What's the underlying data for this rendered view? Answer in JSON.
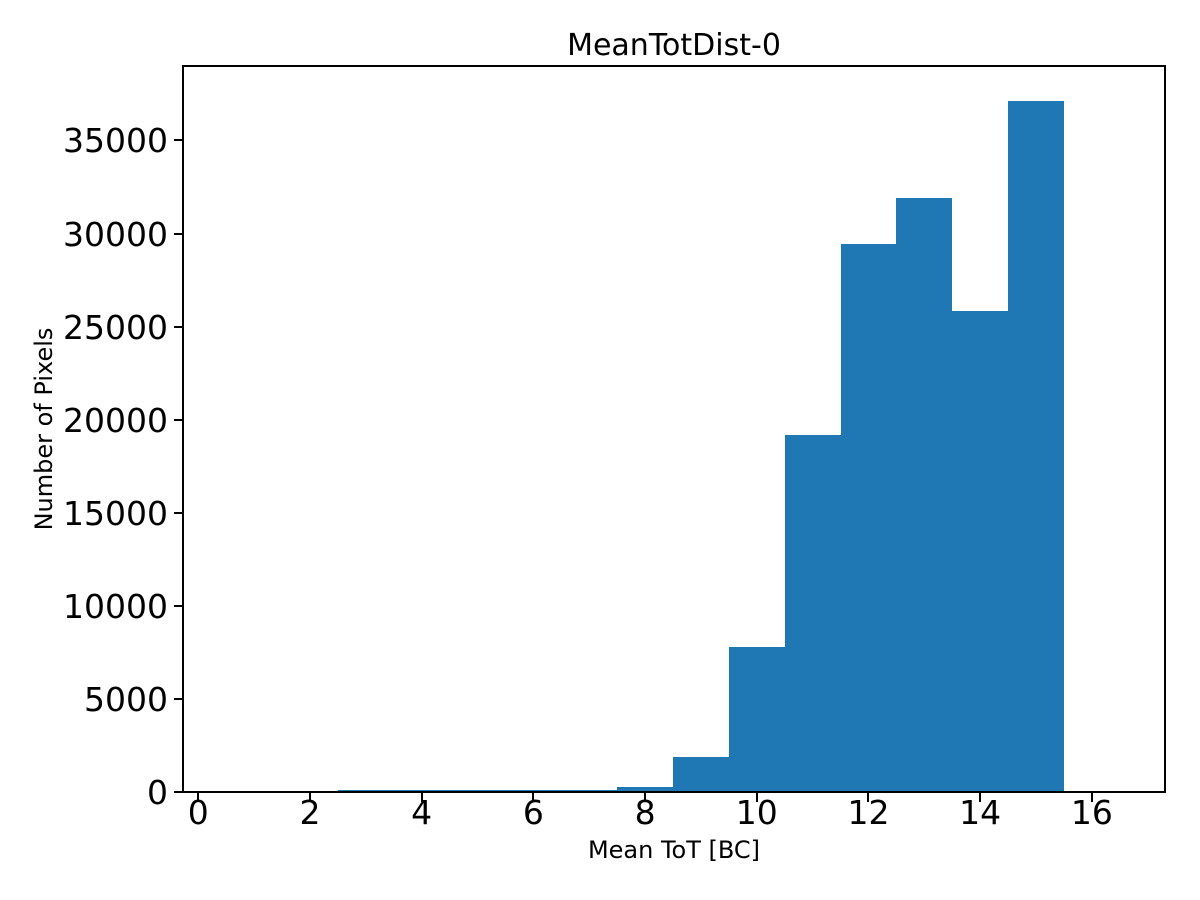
{
  "figure": {
    "background": "#ffffff",
    "text_color": "#000000"
  },
  "chart_data": {
    "type": "bar",
    "title": "MeanTotDist-0",
    "xlabel": "Mean ToT [BC]",
    "ylabel": "Number of Pixels",
    "bar_color": "#1f77b4",
    "axis_color": "#000000",
    "grid": false,
    "legend": null,
    "bin_edges": [
      2.5,
      3.5,
      4.5,
      5.5,
      6.5,
      7.5,
      8.5,
      9.5,
      10.5,
      11.5,
      12.5,
      13.5,
      14.5,
      15.5
    ],
    "values": [
      60,
      65,
      70,
      75,
      90,
      260,
      1890,
      7800,
      19200,
      29450,
      31900,
      25850,
      37100
    ],
    "xticks": [
      0,
      2,
      4,
      6,
      8,
      10,
      12,
      14,
      16
    ],
    "yticks": [
      0,
      5000,
      10000,
      15000,
      20000,
      25000,
      30000,
      35000
    ],
    "xlim": [
      -0.274,
      17.31
    ],
    "ylim": [
      0,
      39000
    ]
  }
}
